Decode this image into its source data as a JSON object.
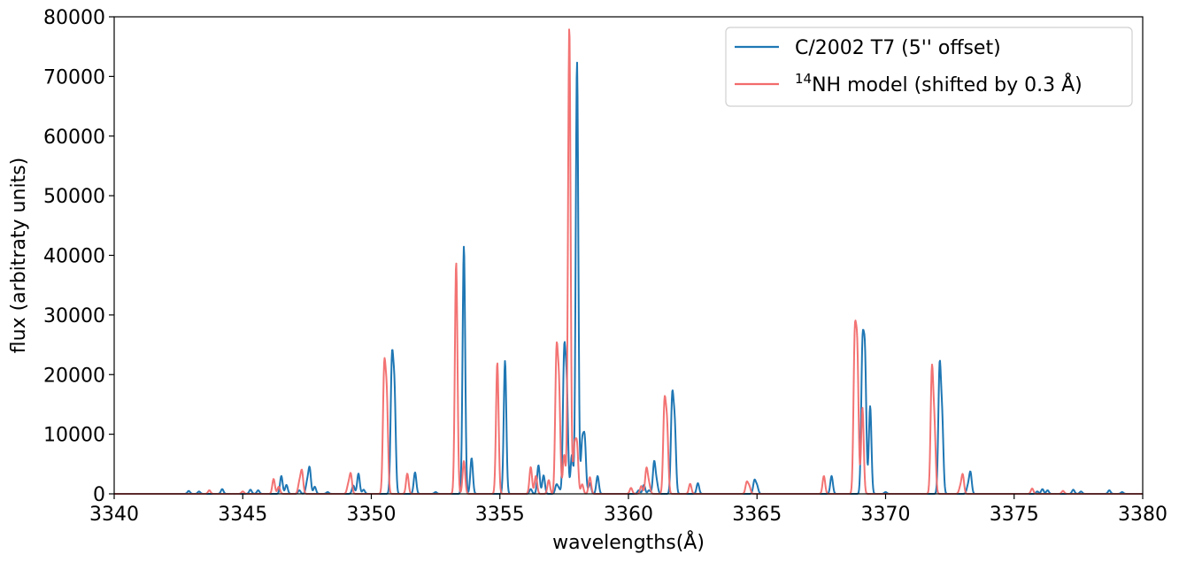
{
  "chart_data": {
    "type": "line",
    "xlabel": "wavelengths(Å)",
    "ylabel": "flux (arbitraty units)",
    "xlim": [
      3340,
      3380
    ],
    "ylim": [
      0,
      80000
    ],
    "xticks": [
      "3340",
      "3345",
      "3350",
      "3355",
      "3360",
      "3365",
      "3370",
      "3375",
      "3380"
    ],
    "yticks": [
      "0",
      "10000",
      "20000",
      "30000",
      "40000",
      "50000",
      "60000",
      "70000",
      "80000"
    ],
    "legend_position": "top-right",
    "grid": false,
    "line_width_resolution": 0.05,
    "series": [
      {
        "name": "C/2002 T7 (5'' offset)",
        "legend_prefix": "",
        "legend_sup": "",
        "legend_suffix": "C/2002 T7 (5'' offset)",
        "color": "#1f77b4",
        "peaks": [
          {
            "x": 3342.9,
            "y": 500
          },
          {
            "x": 3343.3,
            "y": 400
          },
          {
            "x": 3344.2,
            "y": 800
          },
          {
            "x": 3345.3,
            "y": 700
          },
          {
            "x": 3345.6,
            "y": 600
          },
          {
            "x": 3346.5,
            "y": 3000
          },
          {
            "x": 3346.7,
            "y": 1500
          },
          {
            "x": 3347.2,
            "y": 600
          },
          {
            "x": 3347.5,
            "y": 1800
          },
          {
            "x": 3347.6,
            "y": 4300
          },
          {
            "x": 3347.8,
            "y": 1200
          },
          {
            "x": 3348.3,
            "y": 300
          },
          {
            "x": 3349.3,
            "y": 1400
          },
          {
            "x": 3349.5,
            "y": 3400
          },
          {
            "x": 3349.7,
            "y": 700
          },
          {
            "x": 3350.8,
            "y": 21300
          },
          {
            "x": 3350.9,
            "y": 16500
          },
          {
            "x": 3351.7,
            "y": 3600
          },
          {
            "x": 3352.5,
            "y": 300
          },
          {
            "x": 3353.6,
            "y": 41500
          },
          {
            "x": 3353.9,
            "y": 6000
          },
          {
            "x": 3355.2,
            "y": 22300
          },
          {
            "x": 3356.2,
            "y": 800
          },
          {
            "x": 3356.5,
            "y": 4800
          },
          {
            "x": 3356.7,
            "y": 3100
          },
          {
            "x": 3357.2,
            "y": 1500
          },
          {
            "x": 3357.3,
            "y": 800
          },
          {
            "x": 3357.5,
            "y": 22500
          },
          {
            "x": 3357.6,
            "y": 17000
          },
          {
            "x": 3357.8,
            "y": 6500
          },
          {
            "x": 3358.0,
            "y": 72500
          },
          {
            "x": 3358.2,
            "y": 8200
          },
          {
            "x": 3358.3,
            "y": 8800
          },
          {
            "x": 3358.5,
            "y": 1800
          },
          {
            "x": 3358.8,
            "y": 3000
          },
          {
            "x": 3360.4,
            "y": 600
          },
          {
            "x": 3360.6,
            "y": 1500
          },
          {
            "x": 3360.8,
            "y": 600
          },
          {
            "x": 3361.0,
            "y": 5300
          },
          {
            "x": 3361.1,
            "y": 1800
          },
          {
            "x": 3361.7,
            "y": 15500
          },
          {
            "x": 3361.8,
            "y": 11000
          },
          {
            "x": 3362.7,
            "y": 1800
          },
          {
            "x": 3364.9,
            "y": 2200
          },
          {
            "x": 3365.0,
            "y": 1300
          },
          {
            "x": 3367.9,
            "y": 3000
          },
          {
            "x": 3369.1,
            "y": 23200
          },
          {
            "x": 3369.2,
            "y": 21800
          },
          {
            "x": 3369.4,
            "y": 14700
          },
          {
            "x": 3370.0,
            "y": 300
          },
          {
            "x": 3372.1,
            "y": 20500
          },
          {
            "x": 3372.2,
            "y": 11800
          },
          {
            "x": 3373.2,
            "y": 1200
          },
          {
            "x": 3373.3,
            "y": 3600
          },
          {
            "x": 3375.9,
            "y": 400
          },
          {
            "x": 3376.1,
            "y": 800
          },
          {
            "x": 3376.3,
            "y": 600
          },
          {
            "x": 3377.3,
            "y": 700
          },
          {
            "x": 3377.6,
            "y": 400
          },
          {
            "x": 3378.7,
            "y": 600
          },
          {
            "x": 3379.2,
            "y": 300
          }
        ]
      },
      {
        "name": "14NH model (shifted by 0.3 Å)",
        "legend_prefix": "",
        "legend_sup": "14",
        "legend_suffix": "NH model (shifted by 0.3 Å)",
        "color": "#f26b6b",
        "peaks": [
          {
            "x": 3343.7,
            "y": 600
          },
          {
            "x": 3345.0,
            "y": 400
          },
          {
            "x": 3346.2,
            "y": 2500
          },
          {
            "x": 3346.4,
            "y": 1200
          },
          {
            "x": 3347.2,
            "y": 1800
          },
          {
            "x": 3347.3,
            "y": 3800
          },
          {
            "x": 3349.1,
            "y": 1400
          },
          {
            "x": 3349.2,
            "y": 3300
          },
          {
            "x": 3350.5,
            "y": 20000
          },
          {
            "x": 3350.6,
            "y": 15500
          },
          {
            "x": 3351.4,
            "y": 3400
          },
          {
            "x": 3353.3,
            "y": 38800
          },
          {
            "x": 3353.6,
            "y": 5500
          },
          {
            "x": 3354.9,
            "y": 22000
          },
          {
            "x": 3356.2,
            "y": 4500
          },
          {
            "x": 3356.4,
            "y": 3000
          },
          {
            "x": 3356.9,
            "y": 2300
          },
          {
            "x": 3357.2,
            "y": 22500
          },
          {
            "x": 3357.3,
            "y": 16800
          },
          {
            "x": 3357.5,
            "y": 6500
          },
          {
            "x": 3357.7,
            "y": 78500
          },
          {
            "x": 3357.9,
            "y": 7500
          },
          {
            "x": 3358.0,
            "y": 7800
          },
          {
            "x": 3358.2,
            "y": 1600
          },
          {
            "x": 3358.5,
            "y": 2800
          },
          {
            "x": 3360.1,
            "y": 1000
          },
          {
            "x": 3360.5,
            "y": 1300
          },
          {
            "x": 3360.7,
            "y": 4200
          },
          {
            "x": 3360.8,
            "y": 1600
          },
          {
            "x": 3361.4,
            "y": 14500
          },
          {
            "x": 3361.5,
            "y": 11000
          },
          {
            "x": 3362.4,
            "y": 1700
          },
          {
            "x": 3364.6,
            "y": 1900
          },
          {
            "x": 3364.7,
            "y": 1200
          },
          {
            "x": 3367.6,
            "y": 3000
          },
          {
            "x": 3368.8,
            "y": 24700
          },
          {
            "x": 3368.9,
            "y": 22500
          },
          {
            "x": 3369.1,
            "y": 14500
          },
          {
            "x": 3371.8,
            "y": 20000
          },
          {
            "x": 3371.9,
            "y": 10600
          },
          {
            "x": 3372.9,
            "y": 1000
          },
          {
            "x": 3373.0,
            "y": 3200
          },
          {
            "x": 3375.7,
            "y": 900
          },
          {
            "x": 3376.9,
            "y": 500
          }
        ]
      }
    ]
  }
}
